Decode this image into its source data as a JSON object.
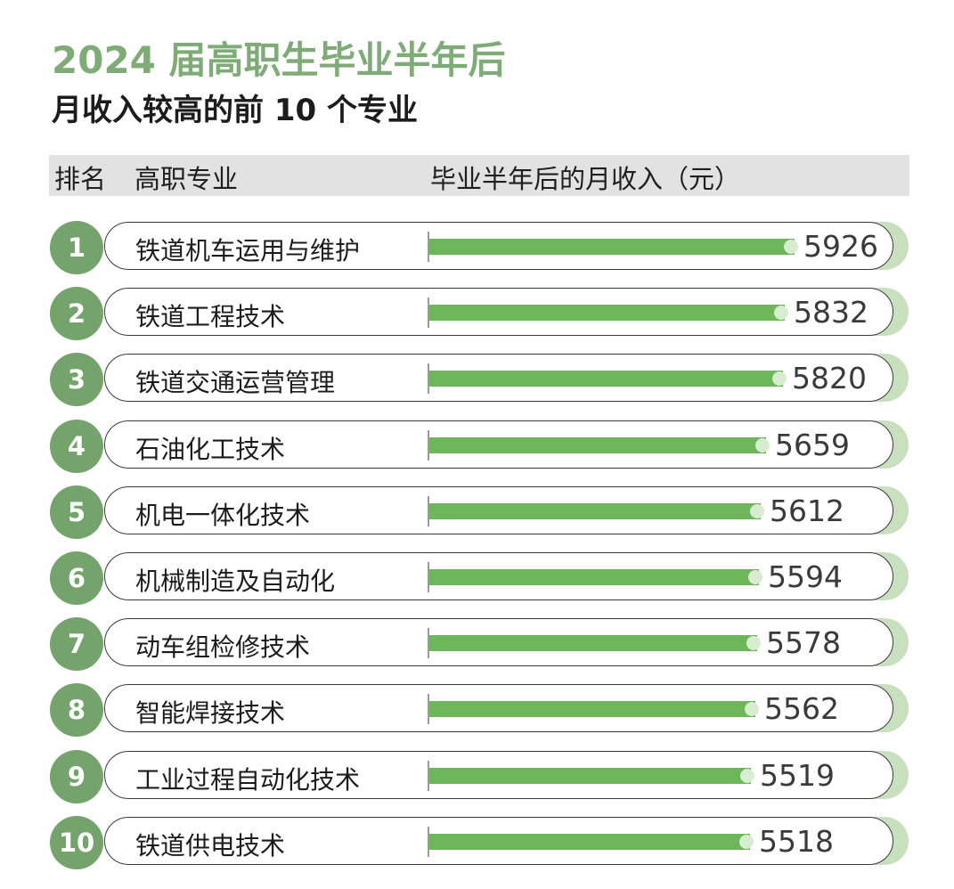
{
  "title_line1": "2024 届高职生毕业半年后",
  "title_line2": "月收入较高的前 10 个专业",
  "header": {
    "rank": "排名",
    "major": "高职专业",
    "income": "毕业半年后的月收入（元）"
  },
  "colors": {
    "title_green": "#7fac76",
    "rank_circle": "#74a36c",
    "bar_green": "#6db75a"
  },
  "chart_data": {
    "type": "bar",
    "orientation": "horizontal",
    "title": "2024 届高职生毕业半年后 月收入较高的前 10 个专业",
    "ylabel": "高职专业",
    "xlabel": "毕业半年后的月收入（元）",
    "ranks": [
      "1",
      "2",
      "3",
      "4",
      "5",
      "6",
      "7",
      "8",
      "9",
      "10"
    ],
    "categories": [
      "铁道机车运用与维护",
      "铁道工程技术",
      "铁道交通运营管理",
      "石油化工技术",
      "机电一体化技术",
      "机械制造及自动化",
      "动车组检修技术",
      "智能焊接技术",
      "工业过程自动化技术",
      "铁道供电技术"
    ],
    "values": [
      5926,
      5832,
      5820,
      5659,
      5612,
      5594,
      5578,
      5562,
      5519,
      5518
    ],
    "value_labels": [
      "5926",
      "5832",
      "5820",
      "5659",
      "5612",
      "5594",
      "5578",
      "5562",
      "5519",
      "5518"
    ],
    "grid": false
  }
}
